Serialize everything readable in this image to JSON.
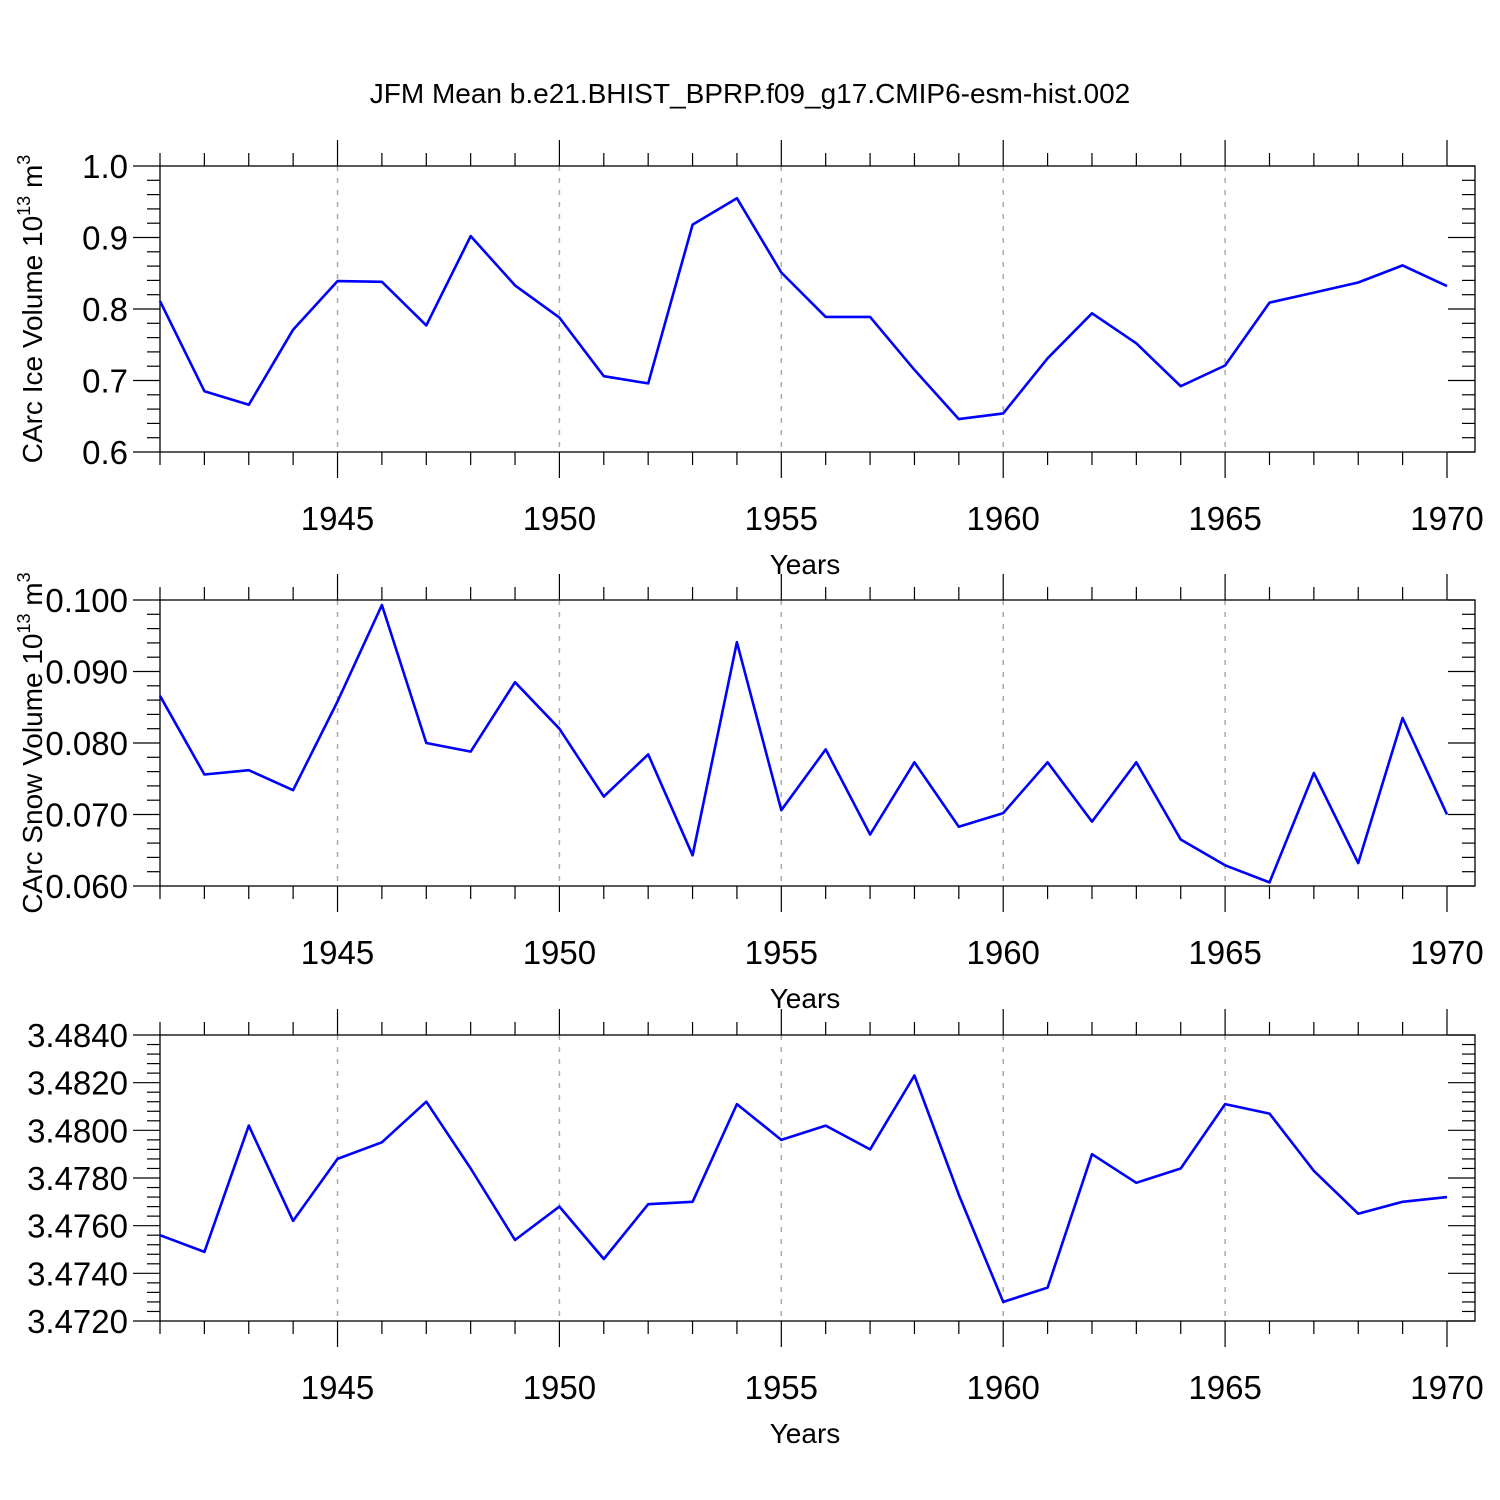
{
  "title": "JFM Mean b.e21.BHIST_BPRP.f09_g17.CMIP6-esm-hist.002",
  "colors": {
    "line": "#0000ff"
  },
  "chart_data": [
    {
      "type": "line",
      "ylabel": "CArc Ice Volume 10",
      "ylabel_exp": "13",
      "ylabel_unit": " m",
      "ylabel_unit_exp": "3",
      "xlabel": "Years",
      "xlim": [
        1941,
        1970
      ],
      "ylim": [
        0.6,
        1.0
      ],
      "yticks": [
        "0.6",
        "0.7",
        "0.8",
        "0.9",
        "1.0"
      ],
      "xticks": [
        "1945",
        "1950",
        "1955",
        "1960",
        "1965",
        "1970"
      ],
      "grid_x": [
        1945,
        1950,
        1955,
        1960,
        1965
      ],
      "x": [
        1941,
        1942,
        1943,
        1944,
        1945,
        1946,
        1947,
        1948,
        1949,
        1950,
        1951,
        1952,
        1953,
        1954,
        1955,
        1956,
        1957,
        1958,
        1959,
        1960,
        1961,
        1962,
        1963,
        1964,
        1965,
        1966,
        1967,
        1968,
        1969,
        1970
      ],
      "values": [
        0.811,
        0.685,
        0.666,
        0.771,
        0.839,
        0.838,
        0.777,
        0.902,
        0.833,
        0.788,
        0.706,
        0.696,
        0.918,
        0.955,
        0.851,
        0.789,
        0.789,
        0.715,
        0.646,
        0.654,
        0.731,
        0.794,
        0.752,
        0.692,
        0.721,
        0.809,
        0.823,
        0.837,
        0.861,
        0.832
      ]
    },
    {
      "type": "line",
      "ylabel": "CArc Snow Volume 10",
      "ylabel_exp": "13",
      "ylabel_unit": " m",
      "ylabel_unit_exp": "3",
      "xlabel": "Years",
      "xlim": [
        1941,
        1970
      ],
      "ylim": [
        0.06,
        0.1
      ],
      "yticks": [
        "0.060",
        "0.070",
        "0.080",
        "0.090",
        "0.100"
      ],
      "xticks": [
        "1945",
        "1950",
        "1955",
        "1960",
        "1965",
        "1970"
      ],
      "grid_x": [
        1945,
        1950,
        1955,
        1960,
        1965
      ],
      "x": [
        1941,
        1942,
        1943,
        1944,
        1945,
        1946,
        1947,
        1948,
        1949,
        1950,
        1951,
        1952,
        1953,
        1954,
        1955,
        1956,
        1957,
        1958,
        1959,
        1960,
        1961,
        1962,
        1963,
        1964,
        1965,
        1966,
        1967,
        1968,
        1969,
        1970
      ],
      "values": [
        0.0866,
        0.0756,
        0.0762,
        0.0734,
        0.0858,
        0.0993,
        0.08,
        0.0788,
        0.0885,
        0.082,
        0.0725,
        0.0784,
        0.0643,
        0.0941,
        0.0706,
        0.0791,
        0.0672,
        0.0773,
        0.0683,
        0.0702,
        0.0773,
        0.069,
        0.0773,
        0.0665,
        0.0629,
        0.0605,
        0.0758,
        0.0632,
        0.0835,
        0.07
      ]
    },
    {
      "type": "line",
      "ylabel": "",
      "xlabel": "Years",
      "xlim": [
        1941,
        1970
      ],
      "ylim": [
        3.472,
        3.484
      ],
      "yticks": [
        "3.4720",
        "3.4740",
        "3.4760",
        "3.4780",
        "3.4800",
        "3.4820",
        "3.4840"
      ],
      "xticks": [
        "1945",
        "1950",
        "1955",
        "1960",
        "1965",
        "1970"
      ],
      "grid_x": [
        1945,
        1950,
        1955,
        1960,
        1965
      ],
      "x": [
        1941,
        1942,
        1943,
        1944,
        1945,
        1946,
        1947,
        1948,
        1949,
        1950,
        1951,
        1952,
        1953,
        1954,
        1955,
        1956,
        1957,
        1958,
        1959,
        1960,
        1961,
        1962,
        1963,
        1964,
        1965,
        1966,
        1967,
        1968,
        1969,
        1970
      ],
      "values": [
        3.4756,
        3.4749,
        3.4802,
        3.4762,
        3.4788,
        3.4795,
        3.4812,
        3.4784,
        3.4754,
        3.4768,
        3.4746,
        3.4769,
        3.477,
        3.4811,
        3.4796,
        3.4802,
        3.4792,
        3.4823,
        3.4773,
        3.4728,
        3.4734,
        3.479,
        3.4778,
        3.4784,
        3.4811,
        3.4807,
        3.4783,
        3.4765,
        3.477,
        3.4772
      ]
    }
  ]
}
